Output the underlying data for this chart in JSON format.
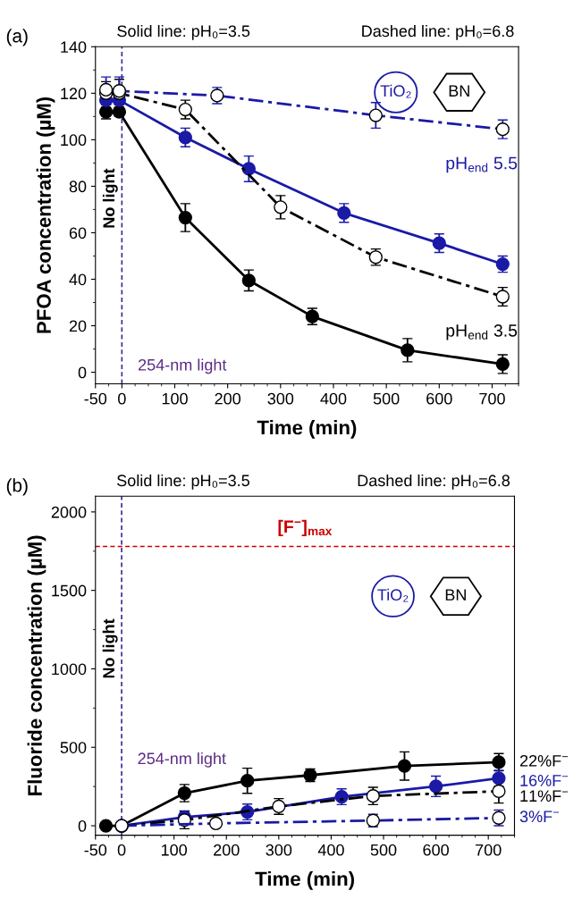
{
  "chart_data": [
    {
      "type": "line",
      "title": "(a)",
      "xlabel": "Time (min)",
      "ylabel": "PFOA concentration (µM)",
      "xlim": [
        -50,
        750
      ],
      "xticks": [
        -50,
        0,
        100,
        200,
        300,
        400,
        500,
        600,
        700
      ],
      "ylim": [
        -5,
        140
      ],
      "yticks": [
        0,
        20,
        40,
        60,
        80,
        100,
        120,
        140
      ],
      "grid": false,
      "marker": "circle",
      "series": [
        {
          "color": "#000000",
          "line_style": "solid",
          "x": [
            -30,
            -5,
            120,
            240,
            360,
            540,
            720
          ],
          "values": [
            112,
            112,
            66.5,
            39.5,
            24,
            9.5,
            3.5
          ],
          "errors": [
            3,
            2,
            6,
            4.5,
            3.5,
            5,
            4
          ]
        },
        {
          "color": "#1a1aa6",
          "line_style": "solid",
          "x": [
            -30,
            -5,
            120,
            240,
            420,
            600,
            720
          ],
          "values": [
            117,
            117,
            101,
            87.5,
            68.5,
            55.5,
            46.5
          ],
          "errors": [
            3,
            2,
            4,
            5.5,
            4,
            4,
            3.5
          ]
        },
        {
          "color": "#000000",
          "line_style": "dashed",
          "x": [
            -30,
            -5,
            120,
            300,
            480,
            720
          ],
          "values": [
            120,
            120,
            113,
            71,
            49.5,
            32.5
          ],
          "errors": [
            5,
            6,
            4,
            5,
            3.5,
            4
          ]
        },
        {
          "color": "#1a1aa6",
          "line_style": "dashed",
          "x": [
            -30,
            -5,
            180,
            480,
            720
          ],
          "values": [
            121.5,
            121,
            119,
            110.5,
            104.5
          ],
          "errors": [
            5.5,
            6,
            3.5,
            5.5,
            4
          ]
        }
      ],
      "ref_lines": [
        {
          "axis": "x",
          "value": 0,
          "color": "#3b2aa0",
          "line_style": "dashed"
        }
      ],
      "annotations": [
        "Solid line: pH₀=3.5",
        "Dashed line: pH₀=6.8",
        "No light",
        "254-nm light",
        "TiO₂",
        "BN",
        "pH$_{end}$ 5.5",
        "pH$_{end}$ 3.5"
      ]
    },
    {
      "type": "line",
      "title": "(b)",
      "xlabel": "Time (min)",
      "ylabel": "Fluoride concentration (µM)",
      "xlim": [
        -50,
        750
      ],
      "xticks": [
        -50,
        0,
        100,
        200,
        300,
        400,
        500,
        600,
        700
      ],
      "ylim": [
        -60,
        2100
      ],
      "yticks": [
        0,
        500,
        1000,
        1500,
        2000
      ],
      "grid": false,
      "marker": "circle",
      "series": [
        {
          "color": "#000000",
          "line_style": "solid",
          "x": [
            -30,
            0,
            120,
            240,
            360,
            540,
            720
          ],
          "values": [
            0,
            0,
            208,
            287,
            322,
            381,
            405
          ],
          "errors": [
            null,
            null,
            55,
            80,
            40,
            90,
            55
          ]
        },
        {
          "color": "#1a1aa6",
          "line_style": "solid",
          "x": [
            0,
            120,
            240,
            420,
            600,
            720
          ],
          "values": [
            0,
            55,
            88,
            185,
            251,
            303
          ],
          "errors": [
            null,
            40,
            50,
            50,
            65,
            50
          ]
        },
        {
          "color": "#000000",
          "line_style": "dashed",
          "x": [
            0,
            120,
            300,
            480,
            720
          ],
          "values": [
            0,
            36,
            123,
            190,
            220
          ],
          "errors": [
            null,
            55,
            50,
            55,
            75
          ]
        },
        {
          "color": "#1a1aa6",
          "line_style": "dashed",
          "x": [
            0,
            180,
            480,
            720
          ],
          "values": [
            0,
            15,
            33,
            50
          ],
          "errors": [
            null,
            null,
            40,
            50
          ]
        }
      ],
      "ref_lines": [
        {
          "axis": "x",
          "value": 0,
          "color": "#3b2aa0",
          "line_style": "dashed"
        },
        {
          "axis": "y",
          "value": 1780,
          "color": "#cc0000",
          "line_style": "dashed",
          "label": "[F$^{−}$]$_{max}$"
        }
      ],
      "annotations": [
        "Solid line: pH₀=3.5",
        "Dashed line: pH₀=6.8",
        "No light",
        "254-nm light",
        "TiO₂",
        "BN",
        "22%F$^{−}$",
        "16%F$^{−}$",
        "11%F$^{−}$",
        "3%F$^{−}$"
      ]
    }
  ]
}
